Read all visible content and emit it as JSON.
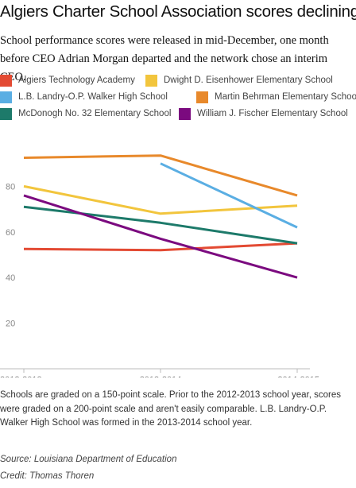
{
  "title": "Algiers Charter School Association scores declining",
  "subtitle": "School performance scores were released in mid-December, one month before CEO Adrian Morgan departed and the network chose an interim CEO.",
  "legend": [
    {
      "label": "Algiers Technology Academy",
      "color": "#e34a33"
    },
    {
      "label": "Dwight D. Eisenhower Elementary School",
      "color": "#f2c53d"
    },
    {
      "label": "L.B. Landry-O.P. Walker High School",
      "color": "#5aaee3"
    },
    {
      "label": "Martin Behrman Elementary School",
      "color": "#e8892b"
    },
    {
      "label": "McDonogh No. 32 Elementary School",
      "color": "#1d7a6a"
    },
    {
      "label": "William J. Fischer Elementary School",
      "color": "#7b0a7f"
    }
  ],
  "chart_data": {
    "type": "line",
    "categories": [
      "2012-2013",
      "2013-2014",
      "2014-2015"
    ],
    "ylim": [
      0,
      100
    ],
    "yticks": [
      20,
      40,
      60,
      80
    ],
    "grid": false,
    "legend_position": "top",
    "series": [
      {
        "name": "Algiers Technology Academy",
        "color": "#e34a33",
        "values": [
          52.5,
          52,
          55
        ]
      },
      {
        "name": "Dwight D. Eisenhower Elementary School",
        "color": "#f2c53d",
        "values": [
          80,
          68,
          71.5
        ]
      },
      {
        "name": "L.B. Landry-O.P. Walker High School",
        "color": "#5aaee3",
        "values": [
          null,
          90,
          62
        ]
      },
      {
        "name": "Martin Behrman Elementary School",
        "color": "#e8892b",
        "values": [
          92.5,
          93.5,
          76
        ]
      },
      {
        "name": "McDonogh No. 32 Elementary School",
        "color": "#1d7a6a",
        "values": [
          71,
          64,
          55
        ]
      },
      {
        "name": "William J. Fischer Elementary School",
        "color": "#7b0a7f",
        "values": [
          76,
          57,
          40
        ]
      }
    ]
  },
  "notes": "Schools are graded on a 150-point scale. Prior to the 2012-2013 school year, scores were graded on a 200-point scale and aren't easily comparable. L.B. Landry-O.P. Walker High School was formed in the 2013-2014 school year.",
  "source": "Source: Louisiana Department of Education",
  "credit": "Credit: Thomas Thoren"
}
